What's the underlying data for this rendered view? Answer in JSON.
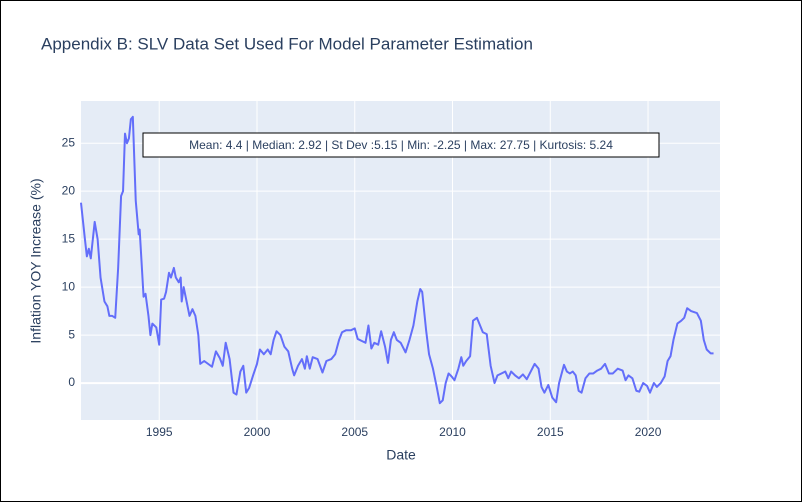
{
  "chart_data": {
    "type": "line",
    "title": "Appendix B: SLV Data Set Used For Model Parameter Estimation",
    "x_label": "Date",
    "y_label": "Inflation YOY Increase (%)",
    "annotation": "Mean: 4.4 | Median: 2.92 | St Dev :5.15 | Min: -2.25 | Max: 27.75 | Kurtosis: 5.24",
    "grid": true,
    "xlim": [
      1991.0,
      2023.68
    ],
    "ylim": [
      -3.85,
      29.4
    ],
    "xticks": [
      1995,
      2000,
      2005,
      2010,
      2015,
      2020
    ],
    "yticks": [
      0,
      5,
      10,
      15,
      20,
      25
    ],
    "series": [
      {
        "color": "#636efa",
        "x": [
          1991.0,
          1991.2,
          1991.3,
          1991.4,
          1991.5,
          1991.7,
          1991.85,
          1992.0,
          1992.2,
          1992.35,
          1992.45,
          1992.6,
          1992.75,
          1992.9,
          1993.05,
          1993.15,
          1993.25,
          1993.35,
          1993.45,
          1993.55,
          1993.65,
          1993.8,
          1993.95,
          1994.0,
          1994.2,
          1994.3,
          1994.45,
          1994.55,
          1994.65,
          1994.85,
          1995.0,
          1995.1,
          1995.25,
          1995.35,
          1995.5,
          1995.6,
          1995.75,
          1995.85,
          1996.0,
          1996.1,
          1996.15,
          1996.25,
          1996.4,
          1996.55,
          1996.7,
          1996.85,
          1997.0,
          1997.1,
          1997.3,
          1997.5,
          1997.7,
          1997.9,
          1998.1,
          1998.25,
          1998.4,
          1998.6,
          1998.8,
          1998.95,
          1999.15,
          1999.3,
          1999.45,
          1999.6,
          1999.8,
          2000.0,
          2000.15,
          2000.35,
          2000.55,
          2000.7,
          2000.85,
          2001.0,
          2001.2,
          2001.4,
          2001.6,
          2001.8,
          2001.9,
          2002.1,
          2002.3,
          2002.45,
          2002.55,
          2002.7,
          2002.85,
          2003.1,
          2003.35,
          2003.55,
          2003.8,
          2004.0,
          2004.2,
          2004.35,
          2004.55,
          2004.8,
          2005.0,
          2005.15,
          2005.35,
          2005.55,
          2005.7,
          2005.85,
          2006.0,
          2006.2,
          2006.35,
          2006.55,
          2006.7,
          2006.85,
          2007.0,
          2007.15,
          2007.35,
          2007.6,
          2007.8,
          2008.0,
          2008.2,
          2008.35,
          2008.45,
          2008.65,
          2008.8,
          2009.0,
          2009.2,
          2009.35,
          2009.5,
          2009.65,
          2009.8,
          2009.95,
          2010.1,
          2010.3,
          2010.45,
          2010.55,
          2010.7,
          2010.9,
          2011.05,
          2011.25,
          2011.35,
          2011.55,
          2011.75,
          2011.95,
          2012.15,
          2012.3,
          2012.5,
          2012.7,
          2012.85,
          2013.0,
          2013.2,
          2013.4,
          2013.6,
          2013.8,
          2014.0,
          2014.2,
          2014.4,
          2014.55,
          2014.7,
          2014.9,
          2015.1,
          2015.3,
          2015.45,
          2015.7,
          2015.85,
          2016.0,
          2016.15,
          2016.3,
          2016.45,
          2016.6,
          2016.8,
          2017.0,
          2017.2,
          2017.4,
          2017.6,
          2017.8,
          2018.0,
          2018.2,
          2018.45,
          2018.7,
          2018.85,
          2019.0,
          2019.2,
          2019.4,
          2019.55,
          2019.75,
          2019.95,
          2020.1,
          2020.3,
          2020.45,
          2020.65,
          2020.85,
          2021.0,
          2021.15,
          2021.3,
          2021.5,
          2021.7,
          2021.85,
          2022.0,
          2022.2,
          2022.5,
          2022.7,
          2022.85,
          2023.0,
          2023.2,
          2023.35
        ],
        "values": [
          18.8,
          15,
          13.2,
          14,
          13,
          16.8,
          15,
          11,
          8.5,
          8,
          7,
          7,
          6.8,
          12,
          19.5,
          20,
          26,
          25,
          25.5,
          27.5,
          27.75,
          19,
          15.5,
          16,
          9,
          9.3,
          7,
          5,
          6.2,
          5.8,
          4,
          8.7,
          8.8,
          9.5,
          11.5,
          11,
          12,
          11,
          10.5,
          11,
          8.5,
          10,
          8.5,
          7,
          7.7,
          7,
          5,
          2,
          2.3,
          2,
          1.7,
          3.3,
          2.6,
          1.8,
          4.2,
          2.5,
          -1,
          -1.2,
          1.2,
          1.8,
          -1,
          -0.5,
          0.8,
          2,
          3.5,
          3,
          3.5,
          3,
          4.5,
          5.4,
          5,
          3.8,
          3.3,
          1.5,
          0.8,
          1.8,
          2.5,
          1.5,
          2.8,
          1.5,
          2.7,
          2.5,
          1.1,
          2.3,
          2.5,
          3,
          4.5,
          5.3,
          5.5,
          5.5,
          5.7,
          4.6,
          4.4,
          4.2,
          6,
          3.6,
          4.2,
          4,
          5.4,
          3.8,
          2.1,
          4.5,
          5.3,
          4.5,
          4.2,
          3.2,
          4.5,
          6,
          8.5,
          9.8,
          9.5,
          5.5,
          3,
          1.5,
          -0.5,
          -2.1,
          -1.8,
          0,
          1,
          0.7,
          0.3,
          1.5,
          2.7,
          1.8,
          2.3,
          2.8,
          6.5,
          6.8,
          6.3,
          5.3,
          5.1,
          1.8,
          0,
          0.8,
          1,
          1.2,
          0.5,
          1.2,
          0.8,
          0.5,
          0.9,
          0.4,
          1.2,
          2,
          1.5,
          -0.4,
          -1,
          -0.2,
          -1.5,
          -2,
          0,
          1.9,
          1.2,
          1,
          1.2,
          0.8,
          -0.8,
          -1,
          0.5,
          1,
          1,
          1.3,
          1.5,
          2,
          1,
          1,
          1.5,
          1.3,
          0.3,
          0.8,
          0.5,
          -0.8,
          -0.9,
          0,
          -0.3,
          -1,
          0,
          -0.4,
          0,
          0.7,
          2.3,
          2.8,
          4.5,
          6.2,
          6.5,
          6.8,
          7.8,
          7.5,
          7.3,
          6.5,
          4.5,
          3.5,
          3.1,
          3.1
        ]
      }
    ]
  }
}
